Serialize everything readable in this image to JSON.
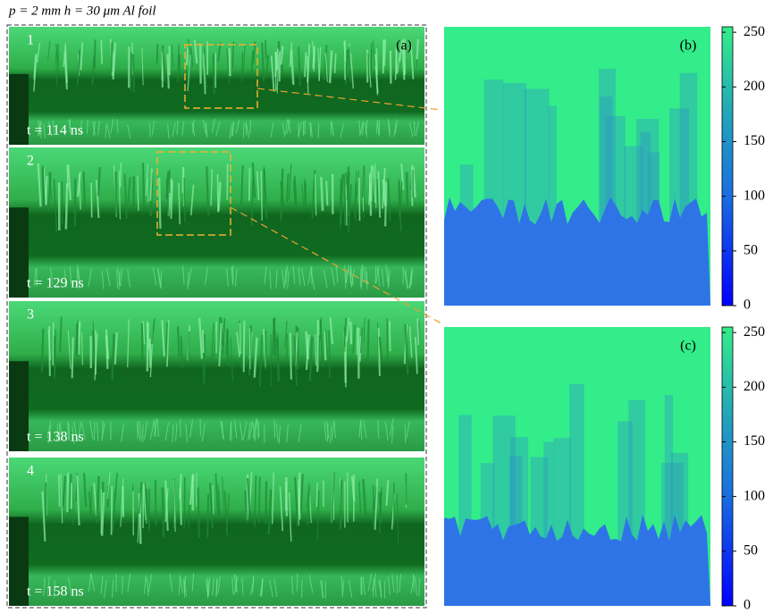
{
  "header": "p = 2 mm   h = 30 μm   Al foil",
  "panel_a": {
    "label": "(a)",
    "frames": [
      {
        "number": "1",
        "time": "t = 114 ns"
      },
      {
        "number": "2",
        "time": "t = 129 ns"
      },
      {
        "number": "3",
        "time": "t = 138 ns"
      },
      {
        "number": "4",
        "time": "t = 158 ns"
      }
    ]
  },
  "panel_b": {
    "label": "(b)"
  },
  "panel_c": {
    "label": "(c)"
  },
  "colorbar": {
    "range": [
      0,
      255
    ],
    "ticks": [
      0,
      50,
      100,
      150,
      200,
      250
    ]
  }
}
